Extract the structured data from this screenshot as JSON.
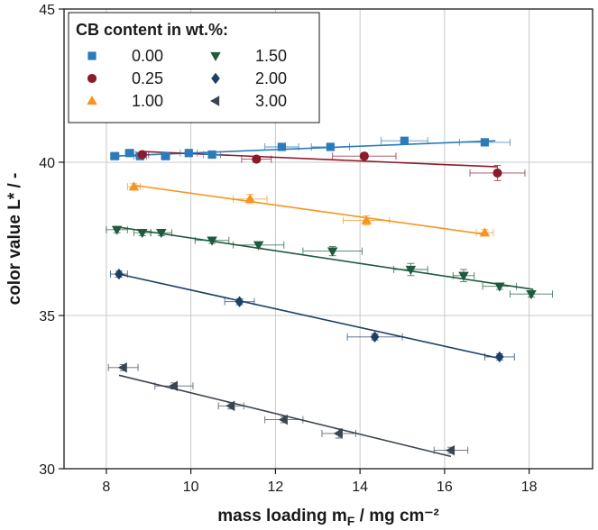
{
  "chart_data": {
    "type": "scatter",
    "xlabel_main": "mass loading m",
    "xlabel_sub": "F",
    "xlabel_tail": " / mg cm⁻²",
    "ylabel": "color value L* / -",
    "xlim": [
      7,
      19.5
    ],
    "ylim": [
      30,
      45
    ],
    "x_ticks": [
      8,
      10,
      12,
      14,
      16,
      18
    ],
    "y_ticks": [
      30,
      35,
      40,
      45
    ],
    "grid": true,
    "legend_title": "CB content in wt.%:",
    "legend_placement": "top-left",
    "series": [
      {
        "name": "0.00",
        "color": "#2b7bba",
        "marker": "square",
        "points": [
          {
            "x": 8.2,
            "y": 40.2,
            "xerr": 0.1,
            "yerr": 0.05
          },
          {
            "x": 8.55,
            "y": 40.3,
            "xerr": 0.1,
            "yerr": 0.05
          },
          {
            "x": 8.8,
            "y": 40.2,
            "xerr": 0.15,
            "yerr": 0.05
          },
          {
            "x": 9.4,
            "y": 40.2,
            "xerr": 0.1,
            "yerr": 0.05
          },
          {
            "x": 9.95,
            "y": 40.3,
            "xerr": 0.2,
            "yerr": 0.05
          },
          {
            "x": 10.5,
            "y": 40.25,
            "xerr": 0.2,
            "yerr": 0.05
          },
          {
            "x": 12.15,
            "y": 40.5,
            "xerr": 0.4,
            "yerr": 0.05
          },
          {
            "x": 13.3,
            "y": 40.5,
            "xerr": 0.45,
            "yerr": 0.05
          },
          {
            "x": 15.05,
            "y": 40.7,
            "xerr": 0.55,
            "yerr": 0.05
          },
          {
            "x": 16.95,
            "y": 40.65,
            "xerr": 0.6,
            "yerr": 0.05
          }
        ],
        "fit": [
          [
            8.2,
            40.2
          ],
          [
            17.2,
            40.7
          ]
        ]
      },
      {
        "name": "0.25",
        "color": "#8b1a2b",
        "marker": "circle",
        "points": [
          {
            "x": 8.85,
            "y": 40.25,
            "xerr": 0.15,
            "yerr": 0.1
          },
          {
            "x": 11.55,
            "y": 40.1,
            "xerr": 0.35,
            "yerr": 0.1
          },
          {
            "x": 14.1,
            "y": 40.2,
            "xerr": 0.75,
            "yerr": 0.1
          },
          {
            "x": 17.25,
            "y": 39.65,
            "xerr": 0.65,
            "yerr": 0.25
          }
        ],
        "fit": [
          [
            8.85,
            40.35
          ],
          [
            17.25,
            39.85
          ]
        ]
      },
      {
        "name": "1.00",
        "color": "#f7941d",
        "marker": "triangle-up",
        "points": [
          {
            "x": 8.65,
            "y": 39.2,
            "xerr": 0.15,
            "yerr": 0.1
          },
          {
            "x": 11.4,
            "y": 38.8,
            "xerr": 0.4,
            "yerr": 0.15
          },
          {
            "x": 14.15,
            "y": 38.1,
            "xerr": 0.55,
            "yerr": 0.15
          },
          {
            "x": 16.95,
            "y": 37.7,
            "xerr": 0.2,
            "yerr": 0.1
          }
        ],
        "fit": [
          [
            8.65,
            39.25
          ],
          [
            16.95,
            37.65
          ]
        ]
      },
      {
        "name": "1.50",
        "color": "#1e5a3e",
        "marker": "triangle-down",
        "points": [
          {
            "x": 8.25,
            "y": 37.8,
            "xerr": 0.25,
            "yerr": 0.1
          },
          {
            "x": 8.85,
            "y": 37.7,
            "xerr": 0.2,
            "yerr": 0.1
          },
          {
            "x": 9.3,
            "y": 37.7,
            "xerr": 0.25,
            "yerr": 0.1
          },
          {
            "x": 10.5,
            "y": 37.45,
            "xerr": 0.4,
            "yerr": 0.1
          },
          {
            "x": 11.6,
            "y": 37.3,
            "xerr": 0.6,
            "yerr": 0.1
          },
          {
            "x": 13.35,
            "y": 37.1,
            "xerr": 0.7,
            "yerr": 0.15
          },
          {
            "x": 15.2,
            "y": 36.5,
            "xerr": 0.4,
            "yerr": 0.2
          },
          {
            "x": 16.45,
            "y": 36.3,
            "xerr": 0.25,
            "yerr": 0.2
          },
          {
            "x": 17.3,
            "y": 35.95,
            "xerr": 0.4,
            "yerr": 0.1
          },
          {
            "x": 18.05,
            "y": 35.7,
            "xerr": 0.5,
            "yerr": 0.1
          }
        ],
        "fit": [
          [
            8.2,
            37.9
          ],
          [
            18.1,
            35.85
          ]
        ]
      },
      {
        "name": "2.00",
        "color": "#1c3f66",
        "marker": "diamond",
        "points": [
          {
            "x": 8.3,
            "y": 36.35,
            "xerr": 0.2,
            "yerr": 0.1
          },
          {
            "x": 11.15,
            "y": 35.45,
            "xerr": 0.35,
            "yerr": 0.1
          },
          {
            "x": 14.35,
            "y": 34.3,
            "xerr": 0.65,
            "yerr": 0.1
          },
          {
            "x": 17.3,
            "y": 33.65,
            "xerr": 0.35,
            "yerr": 0.1
          }
        ],
        "fit": [
          [
            8.3,
            36.35
          ],
          [
            17.3,
            33.6
          ]
        ]
      },
      {
        "name": "3.00",
        "color": "#3b4550",
        "marker": "triangle-left",
        "points": [
          {
            "x": 8.4,
            "y": 33.3,
            "xerr": 0.35,
            "yerr": 0.1
          },
          {
            "x": 9.6,
            "y": 32.7,
            "xerr": 0.45,
            "yerr": 0.1
          },
          {
            "x": 10.95,
            "y": 32.05,
            "xerr": 0.3,
            "yerr": 0.1
          },
          {
            "x": 12.2,
            "y": 31.6,
            "xerr": 0.45,
            "yerr": 0.1
          },
          {
            "x": 13.5,
            "y": 31.15,
            "xerr": 0.4,
            "yerr": 0.15
          },
          {
            "x": 16.15,
            "y": 30.6,
            "xerr": 0.4,
            "yerr": 0.1
          }
        ],
        "fit": [
          [
            8.3,
            33.05
          ],
          [
            16.15,
            30.4
          ]
        ]
      }
    ]
  }
}
